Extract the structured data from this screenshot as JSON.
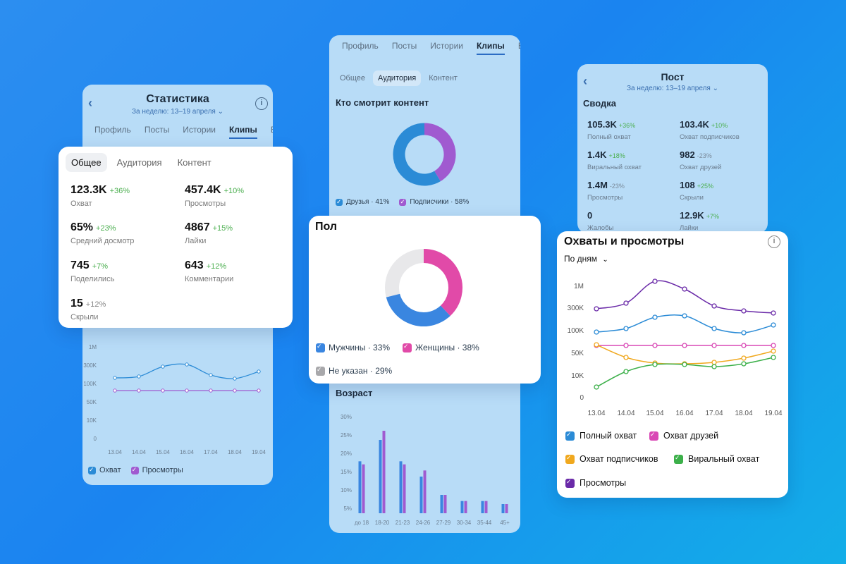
{
  "left": {
    "title": "Статистика",
    "period": "За неделю: 13–19 апреля ⌄",
    "tabs": [
      "Профиль",
      "Посты",
      "Истории",
      "Клипы",
      "Вс"
    ],
    "active_tab": 3,
    "chart": {
      "y_labels": [
        "1M",
        "300K",
        "100K",
        "50K",
        "10K",
        "0"
      ],
      "x_labels": [
        "13.04",
        "14.04",
        "15.04",
        "16.04",
        "17.04",
        "18.04",
        "19.04"
      ],
      "legend": [
        "Охват",
        "Просмотры"
      ],
      "colors": [
        "#2b8bd6",
        "#a05ad0"
      ]
    }
  },
  "stats": {
    "segments": [
      "Общее",
      "Аудитория",
      "Контент"
    ],
    "metrics": [
      {
        "value": "123.3K",
        "delta": "+36%",
        "label": "Охват"
      },
      {
        "value": "457.4K",
        "delta": "+10%",
        "label": "Просмотры"
      },
      {
        "value": "65%",
        "delta": "+23%",
        "label": "Средний досмотр"
      },
      {
        "value": "4867",
        "delta": "+15%",
        "label": "Лайки"
      },
      {
        "value": "745",
        "delta": "+7%",
        "label": "Поделились"
      },
      {
        "value": "643",
        "delta": "+12%",
        "label": "Комментарии"
      },
      {
        "value": "15",
        "delta": "+12%",
        "label": "Скрыли"
      }
    ]
  },
  "middle": {
    "tabs": [
      "Профиль",
      "Посты",
      "Истории",
      "Клипы",
      "Вс"
    ],
    "active_tab": 3,
    "pills": [
      "Общее",
      "Аудитория",
      "Контент"
    ],
    "active_pill": 1,
    "watch_title": "Кто смотрит контент",
    "watch_legend": [
      "Друзья · 41%",
      "Подписчики · 58%"
    ],
    "watch_shares": [
      41,
      58
    ],
    "age_title": "Возраст",
    "age_y": [
      "30%",
      "25%",
      "20%",
      "15%",
      "10%",
      "5%"
    ],
    "age_x": [
      "до 18",
      "18-20",
      "21-23",
      "24-26",
      "27-29",
      "30-34",
      "35-44",
      "45+"
    ],
    "age_a": [
      17,
      24,
      17,
      12,
      6,
      4,
      4,
      3
    ],
    "age_b": [
      16,
      27,
      16,
      14,
      6,
      4,
      4,
      3
    ]
  },
  "gender": {
    "title": "Пол",
    "shares": [
      33,
      38,
      29
    ],
    "colors": [
      "#3a86e0",
      "#e14aa8",
      "#e8e8ea"
    ],
    "legend": [
      "Мужчины · 33%",
      "Женщины · 38%",
      "Не указан · 29%"
    ],
    "legend_colors": [
      "#3a86e0",
      "#e14aa8",
      "#a8a8ab"
    ]
  },
  "post": {
    "title": "Пост",
    "period": "За неделю: 13–19 апреля ⌄",
    "summary_title": "Сводка",
    "metrics": [
      {
        "value": "105.3K",
        "delta": "+36%",
        "label": "Полный охват"
      },
      {
        "value": "103.4K",
        "delta": "+10%",
        "label": "Охват подписчиков"
      },
      {
        "value": "1.4K",
        "delta": "+18%",
        "label": "Виральный охват"
      },
      {
        "value": "982",
        "delta": "-23%",
        "label": "Охват друзей"
      },
      {
        "value": "1.4M",
        "delta": "-23%",
        "label": "Просмотры"
      },
      {
        "value": "108",
        "delta": "+25%",
        "label": "Скрыли"
      },
      {
        "value": "0",
        "delta": "",
        "label": "Жалобы"
      },
      {
        "value": "12.9K",
        "delta": "+7%",
        "label": "Лайки"
      }
    ]
  },
  "reach": {
    "title": "Охваты и просмотры",
    "period_select": "По дням",
    "y_labels": [
      "1M",
      "300K",
      "100K",
      "50K",
      "10K",
      "0"
    ],
    "x_labels": [
      "13.04",
      "14.04",
      "15.04",
      "16.04",
      "17.04",
      "18.04",
      "19.04"
    ],
    "legend": [
      {
        "label": "Полный охват",
        "color": "#2b8bd6"
      },
      {
        "label": "Охват друзей",
        "color": "#d948b5"
      },
      {
        "label": "Охват подписчиков",
        "color": "#f0a81e"
      },
      {
        "label": "Виральный охват",
        "color": "#3cb04a"
      },
      {
        "label": "Просмотры",
        "color": "#6a2aa8"
      }
    ]
  }
}
